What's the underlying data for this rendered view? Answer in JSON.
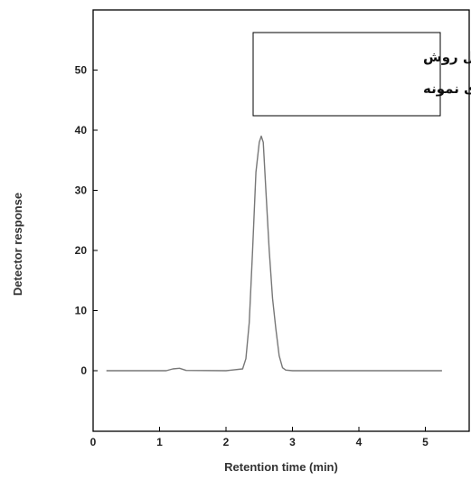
{
  "chart_data": {
    "type": "line",
    "title": "",
    "xlabel": "Retention time (min)",
    "ylabel": "Detector response",
    "xlim": [
      0,
      6
    ],
    "ylim": [
      -10,
      60
    ],
    "xticks": [
      0,
      1,
      2,
      3,
      4,
      5
    ],
    "yticks": [
      0,
      10,
      20,
      30,
      40,
      50
    ],
    "grid": false,
    "annotation": {
      "lines": [
        "قبل از اعمال روش",
        "آماده سازی نمونه"
      ],
      "placement": "top-right"
    },
    "series": [
      {
        "color": "#777777",
        "x": [
          0.2,
          1.1,
          1.2,
          1.3,
          1.4,
          2.0,
          2.25,
          2.3,
          2.35,
          2.4,
          2.45,
          2.5,
          2.53,
          2.56,
          2.6,
          2.65,
          2.7,
          2.75,
          2.8,
          2.85,
          2.9,
          3.0,
          5.25
        ],
        "y": [
          0,
          0,
          0.3,
          0.4,
          0.05,
          0,
          0.3,
          2,
          8,
          20,
          33,
          38,
          39,
          38,
          30,
          20,
          12,
          7,
          2.5,
          0.5,
          0.1,
          0,
          0
        ]
      }
    ]
  }
}
